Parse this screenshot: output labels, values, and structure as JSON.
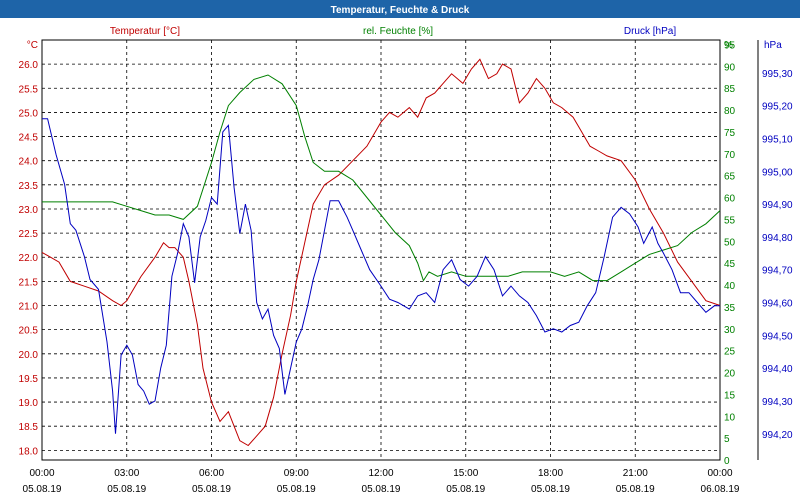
{
  "window_title": "Temperatur, Feuchte & Druck",
  "colors": {
    "title_bar": "#1e64a8",
    "temperature": "#c00000",
    "humidity": "#008000",
    "pressure": "#0000c0",
    "grid": "#000000",
    "axis_text": "#000000"
  },
  "chart_data": {
    "type": "line",
    "title": "Temperatur, Feuchte & Druck",
    "grid": true,
    "legend": "top",
    "x_ticks": [
      {
        "time": "00:00",
        "date": "05.08.19"
      },
      {
        "time": "03:00",
        "date": "05.08.19"
      },
      {
        "time": "06:00",
        "date": "05.08.19"
      },
      {
        "time": "09:00",
        "date": "05.08.19"
      },
      {
        "time": "12:00",
        "date": "05.08.19"
      },
      {
        "time": "15:00",
        "date": "05.08.19"
      },
      {
        "time": "18:00",
        "date": "05.08.19"
      },
      {
        "time": "21:00",
        "date": "05.08.19"
      },
      {
        "time": "00:00",
        "date": "06.08.19"
      }
    ],
    "xlim": [
      0,
      24
    ],
    "axes": {
      "temperature": {
        "unit": "°C",
        "ylim": [
          17.8,
          26.5
        ],
        "ticks": [
          "18.0",
          "18.5",
          "19.0",
          "19.5",
          "20.0",
          "20.5",
          "21.0",
          "21.5",
          "22.0",
          "22.5",
          "23.0",
          "23.5",
          "24.0",
          "24.5",
          "25.0",
          "25.5",
          "26.0"
        ]
      },
      "humidity": {
        "unit": "%",
        "ylim": [
          0,
          96
        ],
        "ticks": [
          "0",
          "5",
          "10",
          "15",
          "20",
          "25",
          "30",
          "35",
          "40",
          "45",
          "50",
          "55",
          "60",
          "65",
          "70",
          "75",
          "80",
          "85",
          "90",
          "95",
          "%"
        ]
      },
      "pressure": {
        "unit": "hPa",
        "ylim": [
          994.12,
          995.4
        ],
        "ticks": [
          "994,20",
          "994,30",
          "994,40",
          "994,50",
          "994,60",
          "994,70",
          "994,80",
          "994,90",
          "995,00",
          "995,10",
          "995,20",
          "995,30"
        ]
      }
    },
    "series": [
      {
        "name": "Temperatur [°C]",
        "axis": "temperature",
        "x": [
          0,
          0.3,
          0.6,
          1,
          1.5,
          2,
          2.5,
          2.8,
          3,
          3.2,
          3.5,
          4,
          4.3,
          4.5,
          4.7,
          5,
          5.2,
          5.5,
          5.7,
          6,
          6.3,
          6.6,
          6.8,
          7,
          7.3,
          7.6,
          7.9,
          8.2,
          8.5,
          8.8,
          9,
          9.3,
          9.6,
          10,
          10.5,
          11,
          11.5,
          12,
          12.3,
          12.6,
          13,
          13.3,
          13.6,
          13.9,
          14.2,
          14.5,
          14.9,
          15.2,
          15.5,
          15.8,
          16.1,
          16.3,
          16.6,
          16.9,
          17.2,
          17.5,
          17.8,
          18.1,
          18.4,
          18.8,
          19.1,
          19.4,
          19.7,
          20,
          20.5,
          21,
          21.5,
          22,
          22.5,
          23,
          23.5,
          24
        ],
        "y": [
          22.1,
          22.0,
          21.9,
          21.5,
          21.4,
          21.3,
          21.1,
          21.0,
          21.1,
          21.3,
          21.6,
          22.0,
          22.3,
          22.2,
          22.2,
          22.0,
          21.5,
          20.6,
          19.7,
          19.0,
          18.6,
          18.8,
          18.5,
          18.2,
          18.1,
          18.3,
          18.5,
          19.1,
          20.0,
          20.8,
          21.5,
          22.3,
          23.1,
          23.5,
          23.7,
          24.0,
          24.3,
          24.8,
          25.0,
          24.9,
          25.1,
          24.9,
          25.3,
          25.4,
          25.6,
          25.8,
          25.6,
          25.9,
          26.1,
          25.7,
          25.8,
          26.0,
          25.9,
          25.2,
          25.4,
          25.7,
          25.5,
          25.2,
          25.1,
          24.9,
          24.6,
          24.3,
          24.2,
          24.1,
          24.0,
          23.6,
          23.0,
          22.5,
          21.9,
          21.5,
          21.1,
          21.0
        ]
      },
      {
        "name": "rel. Feuchte [%]",
        "axis": "humidity",
        "x": [
          0,
          0.5,
          1,
          1.5,
          2,
          2.5,
          3,
          3.5,
          4,
          4.5,
          5,
          5.5,
          6,
          6.3,
          6.6,
          7,
          7.5,
          8,
          8.5,
          9,
          9.3,
          9.6,
          10,
          10.5,
          11,
          11.5,
          12,
          12.5,
          13,
          13.3,
          13.5,
          13.7,
          14,
          14.5,
          15,
          15.5,
          16,
          16.5,
          17,
          17.5,
          18,
          18.5,
          19,
          19.5,
          20,
          20.5,
          21,
          21.5,
          22,
          22.5,
          23,
          23.5,
          24
        ],
        "y": [
          59,
          59,
          59,
          59,
          59,
          59,
          58,
          57,
          56,
          56,
          55,
          58,
          68,
          75,
          81,
          84,
          87,
          88,
          86,
          81,
          74,
          68,
          66,
          66,
          64,
          60,
          56,
          52,
          49,
          45,
          41,
          43,
          42,
          43,
          42,
          42,
          42,
          42,
          43,
          43,
          43,
          42,
          43,
          41,
          41,
          43,
          45,
          47,
          48,
          49,
          52,
          54,
          57
        ]
      },
      {
        "name": "Druck [hPa]",
        "axis": "pressure",
        "x": [
          0,
          0.2,
          0.5,
          0.8,
          1,
          1.2,
          1.5,
          1.7,
          2,
          2.3,
          2.5,
          2.6,
          2.8,
          3,
          3.2,
          3.4,
          3.6,
          3.8,
          4,
          4.2,
          4.4,
          4.6,
          4.8,
          5,
          5.2,
          5.4,
          5.6,
          5.8,
          6,
          6.2,
          6.4,
          6.6,
          6.8,
          7,
          7.2,
          7.4,
          7.6,
          7.8,
          8,
          8.2,
          8.4,
          8.6,
          8.8,
          9,
          9.2,
          9.4,
          9.6,
          9.8,
          10,
          10.2,
          10.5,
          10.8,
          11,
          11.3,
          11.6,
          12,
          12.3,
          12.6,
          13,
          13.3,
          13.6,
          13.9,
          14.2,
          14.5,
          14.8,
          15.1,
          15.4,
          15.7,
          16,
          16.3,
          16.6,
          16.9,
          17.2,
          17.5,
          17.8,
          18.1,
          18.4,
          18.7,
          19,
          19.3,
          19.6,
          19.9,
          20.2,
          20.5,
          20.8,
          21.1,
          21.3,
          21.6,
          21.8,
          22,
          22.3,
          22.6,
          22.9,
          23.2,
          23.5,
          23.8,
          24
        ],
        "y": [
          995.16,
          995.16,
          995.05,
          994.96,
          994.84,
          994.82,
          994.74,
          994.67,
          994.64,
          994.48,
          994.33,
          994.2,
          994.44,
          994.47,
          994.44,
          994.35,
          994.33,
          994.29,
          994.3,
          994.4,
          994.47,
          994.68,
          994.75,
          994.84,
          994.8,
          994.66,
          994.8,
          994.85,
          994.92,
          994.9,
          995.12,
          995.14,
          994.95,
          994.81,
          994.9,
          994.82,
          994.6,
          994.55,
          994.58,
          994.5,
          994.46,
          994.32,
          994.4,
          994.48,
          994.52,
          994.59,
          994.67,
          994.73,
          994.82,
          994.91,
          994.91,
          994.86,
          994.82,
          994.76,
          994.7,
          994.65,
          994.61,
          994.6,
          994.58,
          994.62,
          994.63,
          994.6,
          994.7,
          994.73,
          994.67,
          994.65,
          994.68,
          994.74,
          994.7,
          994.62,
          994.65,
          994.62,
          994.6,
          994.56,
          994.51,
          994.52,
          994.51,
          994.53,
          994.54,
          994.59,
          994.63,
          994.74,
          994.86,
          994.89,
          994.87,
          994.83,
          994.78,
          994.83,
          994.78,
          994.75,
          994.7,
          994.63,
          994.63,
          994.6,
          994.57,
          994.59,
          994.59
        ]
      }
    ]
  }
}
